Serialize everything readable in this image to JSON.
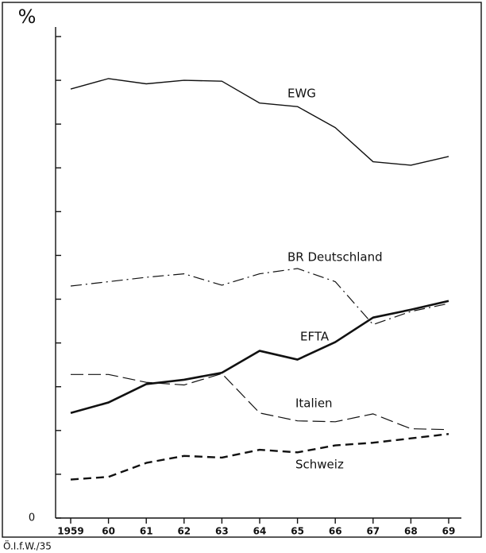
{
  "chart_data": {
    "type": "line",
    "unit_label": "%",
    "source": "Ö.I.f.W./35",
    "categories": [
      "1959",
      "60",
      "61",
      "62",
      "63",
      "64",
      "65",
      "66",
      "67",
      "68",
      "69"
    ],
    "ylim": [
      0,
      55
    ],
    "yticks": [
      {
        "value": 0,
        "label": "0"
      }
    ],
    "yminor_ticks": [
      5,
      10,
      15,
      20,
      25,
      30,
      35,
      40,
      45,
      50,
      55
    ],
    "series": [
      {
        "name": "EWG",
        "color": "#111111",
        "style": "solid",
        "width": 1.4,
        "values": [
          49.0,
          50.2,
          49.6,
          50.0,
          49.9,
          47.4,
          47.0,
          44.6,
          40.7,
          40.3,
          41.3
        ]
      },
      {
        "name": "BR Deutschland",
        "color": "#111111",
        "style": "dashdot",
        "width": 1.2,
        "values": [
          26.5,
          27.0,
          27.5,
          27.9,
          26.6,
          27.9,
          28.5,
          27.0,
          22.1,
          23.6,
          24.5
        ]
      },
      {
        "name": "EFTA",
        "color": "#111111",
        "style": "solid",
        "width": 2.6,
        "values": [
          12.0,
          13.2,
          15.3,
          15.8,
          16.6,
          19.1,
          18.1,
          20.1,
          22.9,
          23.8,
          24.8
        ]
      },
      {
        "name": "Italien",
        "color": "#111111",
        "style": "longdash",
        "width": 1.2,
        "values": [
          16.4,
          16.4,
          15.5,
          15.2,
          16.5,
          12.0,
          11.1,
          11.0,
          11.9,
          10.2,
          10.1
        ]
      },
      {
        "name": "Schweiz",
        "color": "#111111",
        "style": "dash",
        "width": 2.4,
        "values": [
          4.4,
          4.7,
          6.3,
          7.1,
          6.9,
          7.8,
          7.5,
          8.3,
          8.6,
          9.1,
          9.6
        ]
      }
    ]
  }
}
